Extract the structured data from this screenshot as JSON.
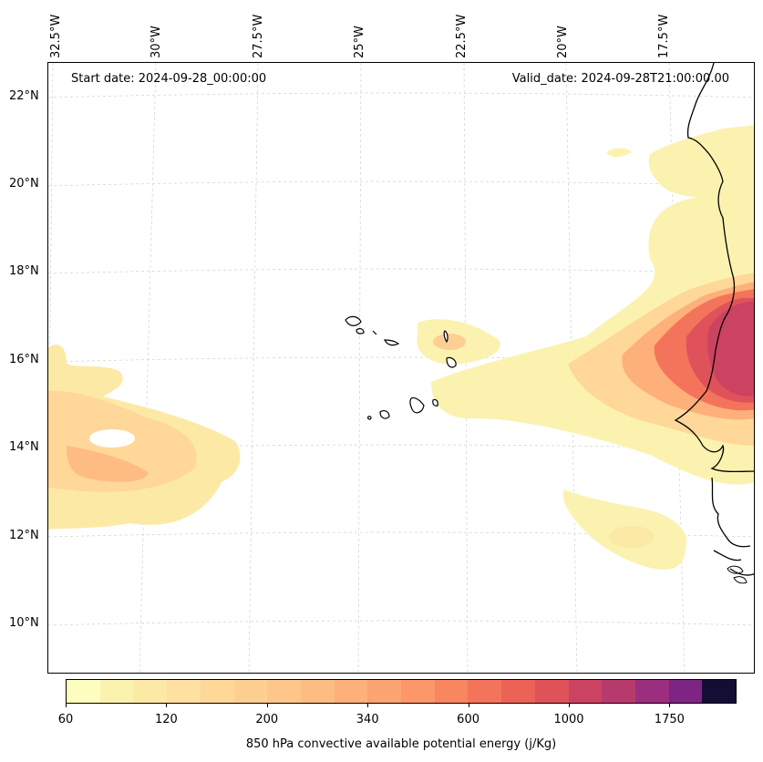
{
  "map": {
    "start_date": "Start date: 2024-09-28_00:00:00",
    "valid_date": "Valid_date: 2024-09-28T21:00:00.00",
    "lon_labels": [
      "32.5°W",
      "30°W",
      "27.5°W",
      "25°W",
      "22.5°W",
      "20°W",
      "17.5°W"
    ],
    "lat_labels": [
      "22°N",
      "20°N",
      "18°N",
      "16°N",
      "14°N",
      "12°N",
      "10°N"
    ],
    "field": "850 hPa convective available potential energy",
    "region": "West Africa coast and Cape Verde islands"
  },
  "colorbar": {
    "title": "850 hPa convective available potential energy (j/Kg)",
    "tick_labels": [
      "60",
      "120",
      "200",
      "340",
      "600",
      "1000",
      "1750"
    ],
    "levels": [
      60,
      80,
      100,
      120,
      140,
      160,
      180,
      200,
      240,
      280,
      340,
      400,
      480,
      600,
      700,
      800,
      1000,
      1200,
      1500,
      1750,
      2000
    ],
    "colors": [
      "#fcfdbf",
      "#fcf2b0",
      "#fde9a6",
      "#fee0a0",
      "#fed799",
      "#fecf92",
      "#fec68a",
      "#fdbc82",
      "#fdb07a",
      "#fca472",
      "#fb9769",
      "#f88661",
      "#f4745b",
      "#ec6257",
      "#df525a",
      "#cc4361",
      "#b73a6c",
      "#9c2e7f",
      "#7e2482",
      "#140e36"
    ]
  }
}
